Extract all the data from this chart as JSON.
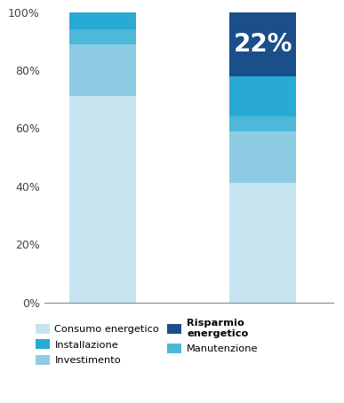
{
  "bar1_segments": [
    {
      "label": "Consumo energetico",
      "value": 71
    },
    {
      "label": "Investimento",
      "value": 18
    },
    {
      "label": "Manutenzione",
      "value": 5
    },
    {
      "label": "Installazione",
      "value": 6
    }
  ],
  "bar2_segments": [
    {
      "label": "Consumo energetico",
      "value": 41
    },
    {
      "label": "Investimento",
      "value": 18
    },
    {
      "label": "Manutenzione",
      "value": 5
    },
    {
      "label": "Installazione",
      "value": 14
    },
    {
      "label": "Risparmio energetico",
      "value": 22
    }
  ],
  "colors": {
    "Consumo energetico": "#c5e4f0",
    "Investimento": "#8dcce3",
    "Manutenzione": "#4db8d8",
    "Installazione": "#29aad4",
    "Risparmio energetico": "#1b4f8a"
  },
  "label_22": "22%",
  "label_22_fontsize": 20,
  "ytick_labels": [
    "0%",
    "20%",
    "40%",
    "60%",
    "80%",
    "100%"
  ],
  "ytick_values": [
    0,
    20,
    40,
    60,
    80,
    100
  ],
  "bar_width": 0.52,
  "bar_positions": [
    0.75,
    2.0
  ],
  "xlim": [
    0.3,
    2.55
  ],
  "ylim": [
    0,
    100
  ],
  "legend_order": [
    [
      "Consumo energetico",
      "Installazione"
    ],
    [
      "Investimento",
      "Risparmio energetico"
    ],
    [
      "Manutenzione",
      ""
    ]
  ]
}
